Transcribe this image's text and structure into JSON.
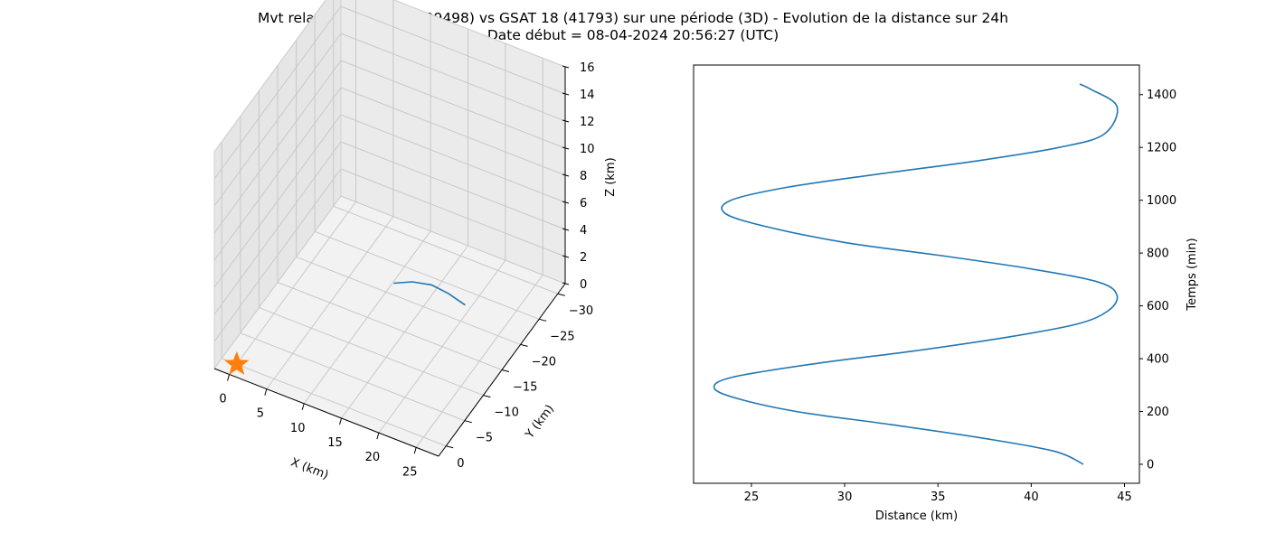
{
  "figure": {
    "title_line1": "Mvt relatif de GSAT 14 (39498) vs GSAT 18 (41793) sur une période (3D) - Evolution de la distance sur 24h",
    "title_line2": "Date début = 08-04-2024 20:56:27 (UTC)"
  },
  "colors": {
    "series": "#1f77b4",
    "marker": "#ff7f0e",
    "pane": "#f2f2f2",
    "grid": "#c8c8c8"
  },
  "chart_data": [
    {
      "type": "line3d",
      "xlabel": "X (km)",
      "ylabel": "Y (km)",
      "zlabel": "Z (km)",
      "xlim": [
        -2,
        28
      ],
      "ylim": [
        -32,
        2
      ],
      "zlim": [
        0,
        16
      ],
      "x_ticks": [
        "0",
        "5",
        "10",
        "15",
        "20",
        "25"
      ],
      "y_ticks": [
        "0",
        "−5",
        "−10",
        "−15",
        "−20",
        "−25",
        "−30"
      ],
      "z_ticks": [
        "0",
        "2",
        "4",
        "6",
        "8",
        "10",
        "12",
        "14",
        "16"
      ],
      "grid": true,
      "series": [
        {
          "marker": "line",
          "x": [
            18.4,
            19.2,
            20.0,
            20.6,
            21.1
          ],
          "y": [
            -5.2,
            -8.6,
            -12.2,
            -15.6,
            -19.0
          ],
          "z": [
            8.0,
            7.0,
            5.6,
            3.8,
            1.8
          ]
        }
      ],
      "marker_points": [
        {
          "marker": "star",
          "x": 0,
          "y": 0,
          "z": 0
        }
      ]
    },
    {
      "type": "line",
      "xlabel": "Distance (km)",
      "ylabel": "Temps (min)",
      "xlim": [
        21.9,
        45.8
      ],
      "ylim": [
        -72,
        1512
      ],
      "x_ticks": [
        "25",
        "30",
        "35",
        "40",
        "45"
      ],
      "y_ticks": [
        "0",
        "200",
        "400",
        "600",
        "800",
        "1000",
        "1200",
        "1400"
      ],
      "y_axis_side": "right",
      "grid": false,
      "series": [
        {
          "x": [
            42.8,
            41.2,
            37.3,
            32.5,
            27.4,
            24.2,
            23.0,
            24.0,
            28.3,
            33.8,
            38.6,
            42.4,
            44.1,
            44.6,
            43.6,
            40.0,
            35.2,
            30.0,
            25.8,
            23.6,
            23.9,
            27.0,
            31.9,
            37.2,
            41.5,
            43.9,
            44.6,
            43.2,
            42.6
          ],
          "y": [
            0,
            50,
            100,
            150,
            200,
            250,
            290,
            330,
            380,
            430,
            480,
            530,
            580,
            640,
            690,
            740,
            790,
            840,
            900,
            950,
            1000,
            1050,
            1100,
            1150,
            1200,
            1250,
            1355,
            1420,
            1440
          ]
        }
      ]
    }
  ]
}
